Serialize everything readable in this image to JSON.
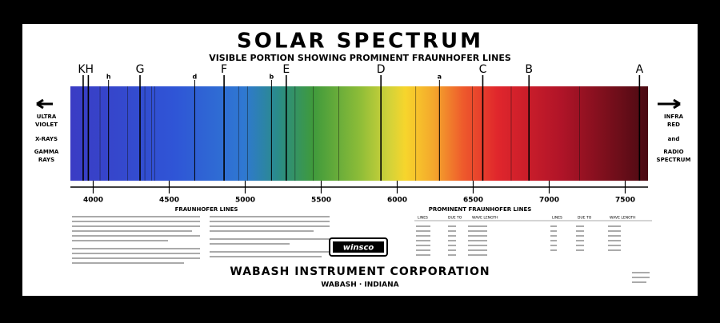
{
  "title": "SOLAR SPECTRUM",
  "subtitle": "VISIBLE PORTION SHOWING PROMINENT FRAUNHOFER LINES",
  "left_side": [
    "ULTRA",
    "VIOLET",
    "X-RAYS",
    "GAMMA",
    "RAYS"
  ],
  "right_side": [
    "INFRA",
    "RED",
    "and",
    "RADIO",
    "SPECTRUM"
  ],
  "spectrum": {
    "xlim": [
      3850,
      7650
    ],
    "xticks": [
      4000,
      4500,
      5000,
      5500,
      6000,
      6500,
      7000,
      7500
    ],
    "lines": [
      {
        "label": "KH",
        "wavelengths": [
          3934,
          3968
        ]
      },
      {
        "label": "h",
        "wavelengths": [
          4101
        ]
      },
      {
        "label": "G",
        "wavelengths": [
          4308
        ]
      },
      {
        "label": "d",
        "wavelengths": [
          4668
        ]
      },
      {
        "label": "F",
        "wavelengths": [
          4861
        ]
      },
      {
        "label": "b",
        "wavelengths": [
          5173
        ]
      },
      {
        "label": "E",
        "wavelengths": [
          5270
        ]
      },
      {
        "label": "D",
        "wavelengths": [
          5893
        ]
      },
      {
        "label": "a",
        "wavelengths": [
          6278
        ]
      },
      {
        "label": "C",
        "wavelengths": [
          6563
        ]
      },
      {
        "label": "B",
        "wavelengths": [
          6867
        ]
      },
      {
        "label": "A",
        "wavelengths": [
          7594
        ]
      }
    ],
    "minor_lines": [
      4045,
      4227,
      4340,
      4384,
      4405,
      4957,
      5015,
      5328,
      5447,
      5616,
      6122,
      6495,
      6750,
      7200
    ]
  },
  "fraunhofer_heading": "FRAUNHOFER LINES",
  "table": {
    "title": "PROMINENT FRAUNHOFER LINES",
    "columns": [
      "LINES",
      "DUE TO",
      "WAVE LENGTH"
    ]
  },
  "logo": "winsco",
  "company": "WABASH INSTRUMENT CORPORATION",
  "location": "WABASH · INDIANA"
}
